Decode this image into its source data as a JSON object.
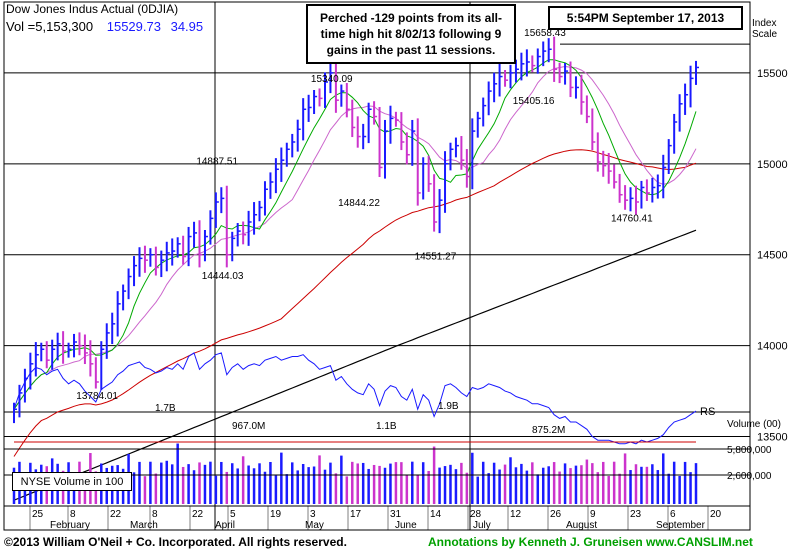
{
  "header": {
    "title": "Dow Jones Indus Actual  (0DJIA)",
    "volume_text": "Vol =5,153,300",
    "price": "15529.73",
    "change": "34.95",
    "timestamp": "5:54PM September 17, 2013",
    "index_label_line1": "Index",
    "index_label_line2": "Scale"
  },
  "annotation": {
    "line1": "Perched -129 points from its all-",
    "line2": "time high hit 8/02/13 following 9",
    "line3": "gains in the past 11 sessions."
  },
  "footer": {
    "copyright": "©2013 William O'Neil + Co. Incorporated. All rights reserved.",
    "credit": "Annotations by Kenneth J. Gruneisen  www.CANSLIM.net"
  },
  "volume_panel": {
    "nyse_label": "NYSE Volume in 100",
    "axis_title": "Volume (00)",
    "ticks": [
      "5,800,000",
      "2,600,000"
    ],
    "peak_labels": [
      "1.7B",
      "967.0M",
      "1.1B",
      "1.9B",
      "875.2M"
    ]
  },
  "colors": {
    "up_bar": "#1a1aff",
    "down_bar": "#cc33cc",
    "ma50": "#00aa00",
    "ma10": "#cc66cc",
    "ma200": "#000000",
    "ma_red": "#cc0000",
    "rs_line": "#1a1aff"
  },
  "chart_data": {
    "type": "bar",
    "title": "Dow Jones Indus Actual  (0DJIA)",
    "y_ticks": [
      15500,
      15000,
      14500,
      14000,
      13500
    ],
    "ylim": [
      13100,
      16000
    ],
    "x_ticks": [
      "25",
      "8",
      "22",
      "8",
      "22",
      "5",
      "19",
      "3",
      "17",
      "31",
      "14",
      "28",
      "12",
      "26",
      "9",
      "23",
      "6",
      "20"
    ],
    "months": [
      "February",
      "March",
      "April",
      "May",
      "June",
      "July",
      "August",
      "September"
    ],
    "price_labels": [
      "13784.01",
      "14887.51",
      "14444.03",
      "15340.09",
      "14844.22",
      "14551.27",
      "15658.43",
      "15405.16",
      "14760.41"
    ],
    "rs_label": "RS",
    "closes": [
      13650,
      13740,
      13820,
      13900,
      13950,
      13980,
      13920,
      13980,
      14010,
      13970,
      13980,
      14020,
      14000,
      13960,
      13900,
      13800,
      13980,
      14070,
      14120,
      14230,
      14300,
      14380,
      14440,
      14480,
      14470,
      14500,
      14430,
      14470,
      14510,
      14520,
      14560,
      14490,
      14600,
      14620,
      14500,
      14600,
      14700,
      14790,
      14810,
      14500,
      14590,
      14630,
      14610,
      14680,
      14720,
      14760,
      14860,
      14900,
      14970,
      15020,
      15080,
      15120,
      15190,
      15300,
      15310,
      15370,
      15360,
      15450,
      15500,
      15350,
      15400,
      15300,
      15200,
      15150,
      15150,
      15300,
      15260,
      14980,
      15180,
      15250,
      15240,
      15120,
      15050,
      15180,
      14840,
      15000,
      14890,
      14680,
      14800,
      15000,
      15080,
      15100,
      15020,
      14930,
      15180,
      15250,
      15320,
      15400,
      15440,
      15480,
      15460,
      15500,
      15520,
      15550,
      15560,
      15540,
      15590,
      15620,
      15630,
      15520,
      15480,
      15510,
      15420,
      15420,
      15340,
      15260,
      15120,
      15010,
      14990,
      14960,
      14900,
      14830,
      14800,
      14810,
      14790,
      14870,
      14840,
      14870,
      14880,
      14980,
      15100,
      15230,
      15330,
      15380,
      15470,
      15530
    ],
    "series": [
      {
        "name": "RS",
        "values": [
          13650,
          13740,
          13800,
          13850,
          13880,
          13870,
          13840,
          13860,
          13870,
          13820,
          13790,
          13810,
          13790,
          13750,
          13720,
          13690,
          13760,
          13780,
          13800,
          13840,
          13860,
          13890,
          13900,
          13910,
          13880,
          13870,
          13850,
          13860,
          13880,
          13870,
          13900,
          13870,
          13940,
          13960,
          13870,
          13900,
          13920,
          13950,
          13960,
          13840,
          13880,
          13900,
          13870,
          13890,
          13900,
          13890,
          13920,
          13930,
          13940,
          13920,
          13930,
          13940,
          13940,
          13950,
          13920,
          13900,
          13870,
          13880,
          13890,
          13810,
          13830,
          13790,
          13760,
          13740,
          13730,
          13790,
          13760,
          13670,
          13750,
          13780,
          13770,
          13720,
          13700,
          13760,
          13650,
          13730,
          13700,
          13610,
          13680,
          13780,
          13790,
          13770,
          13740,
          13720,
          13770,
          13760,
          13770,
          13790,
          13780,
          13770,
          13750,
          13740,
          13720,
          13710,
          13700,
          13680,
          13680,
          13670,
          13660,
          13620,
          13600,
          13610,
          13580,
          13580,
          13560,
          13540,
          13500,
          13480,
          13480,
          13480,
          13470,
          13460,
          13460,
          13470,
          13460,
          13480,
          13470,
          13480,
          13490,
          13510,
          13550,
          13580,
          13590,
          13600,
          13620,
          13640
        ]
      }
    ]
  }
}
